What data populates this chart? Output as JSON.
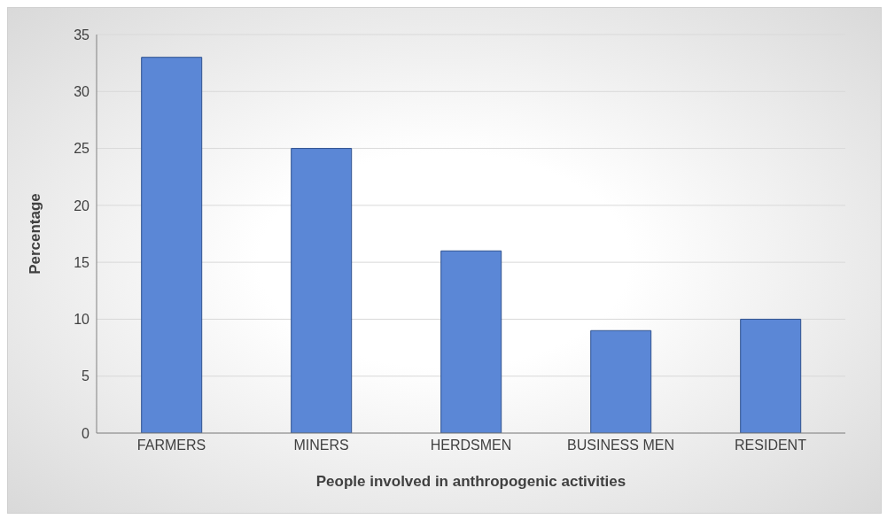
{
  "chart_data": {
    "type": "bar",
    "xlabel": "People involved in anthropogenic activities",
    "ylabel": "Percentage",
    "categories": [
      "FARMERS",
      "MINERS",
      "HERDSMEN",
      "BUSINESS MEN",
      "RESIDENT"
    ],
    "values": [
      33,
      25,
      16,
      9,
      10
    ],
    "color": "#5b87d6",
    "ylim": [
      0,
      35
    ],
    "yticks": [
      0,
      5,
      10,
      15,
      20,
      25,
      30,
      35
    ],
    "grid": "y"
  }
}
